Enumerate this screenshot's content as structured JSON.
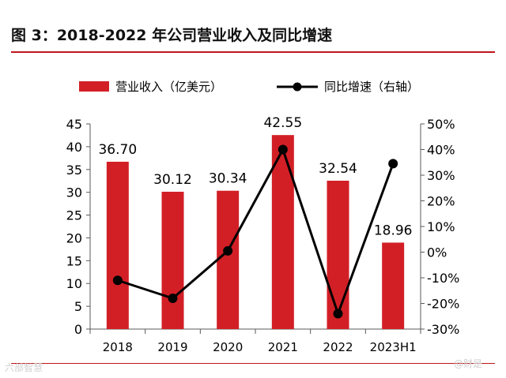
{
  "header": {
    "title": "图 3：2018-2022 年公司营业收入及同比增速"
  },
  "watermarks": {
    "left": "六部智慧",
    "right": "@财是"
  },
  "colors": {
    "bar": "#d21f26",
    "line": "#000000",
    "rule": "#c0151b",
    "axis": "#595959"
  },
  "chart_data": {
    "type": "bar",
    "title": "",
    "categories": [
      "2018",
      "2019",
      "2020",
      "2021",
      "2022",
      "2023H1"
    ],
    "series": [
      {
        "name": "营业收入（亿美元）",
        "type": "bar",
        "axis": "left",
        "values": [
          36.7,
          30.12,
          30.34,
          42.55,
          32.54,
          18.96
        ],
        "labels": [
          "36.70",
          "30.12",
          "30.34",
          "42.55",
          "32.54",
          "18.96"
        ]
      },
      {
        "name": "同比增速（右轴）",
        "type": "line",
        "axis": "right",
        "values": [
          -11,
          -18,
          0.5,
          40,
          -24,
          34.5
        ]
      }
    ],
    "y_left": {
      "min": 0,
      "max": 45,
      "step": 5,
      "ticks": [
        "0",
        "5",
        "10",
        "15",
        "20",
        "25",
        "30",
        "35",
        "40",
        "45"
      ]
    },
    "y_right": {
      "min": -30,
      "max": 50,
      "step": 10,
      "ticks": [
        "-30%",
        "-20%",
        "-10%",
        "0%",
        "10%",
        "20%",
        "30%",
        "40%",
        "50%"
      ]
    },
    "legend_position": "top"
  }
}
